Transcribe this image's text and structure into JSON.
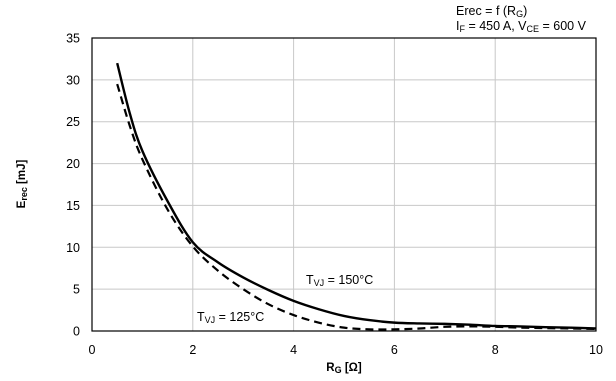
{
  "chart_data": {
    "type": "line",
    "title_lines": [
      "Erec = f (RG)",
      "IF = 450 A, VCE = 600 V"
    ],
    "title_rich": [
      [
        {
          "t": "Erec = f (R"
        },
        {
          "t": "G",
          "sub": true
        },
        {
          "t": ")"
        }
      ],
      [
        {
          "t": "I"
        },
        {
          "t": "F",
          "sub": true
        },
        {
          "t": " = 450 A, V"
        },
        {
          "t": "CE",
          "sub": true
        },
        {
          "t": " = 600 V"
        }
      ]
    ],
    "xlabel": "RG [Ω]",
    "xlabel_rich": [
      {
        "t": "R"
      },
      {
        "t": "G",
        "sub": true
      },
      {
        "t": " [Ω]"
      }
    ],
    "ylabel": "Erec [mJ]",
    "ylabel_rich": [
      {
        "t": "E"
      },
      {
        "t": "rec",
        "sub": true
      },
      {
        "t": "  [mJ]"
      }
    ],
    "xlim": [
      0,
      10
    ],
    "ylim": [
      0,
      35
    ],
    "xticks": [
      0,
      2,
      4,
      6,
      8,
      10
    ],
    "yticks": [
      0,
      5,
      10,
      15,
      20,
      25,
      30,
      35
    ],
    "grid": true,
    "series": [
      {
        "name": "TVJ = 150°C",
        "name_rich": [
          {
            "t": "T"
          },
          {
            "t": "VJ",
            "sub": true
          },
          {
            "t": " = 150°C"
          }
        ],
        "style": "solid",
        "color": "#000000",
        "x": [
          0.5,
          0.75,
          1.0,
          1.5,
          2.0,
          2.5,
          3.0,
          3.5,
          4.0,
          4.5,
          5.0,
          5.5,
          6.0,
          6.5,
          7.0,
          7.5,
          8.0,
          8.5,
          9.0,
          9.5,
          10.0
        ],
        "y": [
          32.0,
          26.0,
          21.5,
          15.5,
          10.6,
          8.2,
          6.4,
          4.9,
          3.6,
          2.6,
          1.8,
          1.3,
          1.0,
          0.9,
          0.85,
          0.75,
          0.6,
          0.55,
          0.45,
          0.4,
          0.3
        ]
      },
      {
        "name": "TVJ = 125°C",
        "name_rich": [
          {
            "t": "T"
          },
          {
            "t": "VJ",
            "sub": true
          },
          {
            "t": " = 125°C"
          }
        ],
        "style": "dashed",
        "color": "#000000",
        "x": [
          0.5,
          0.75,
          1.0,
          1.5,
          2.0,
          2.5,
          3.0,
          3.5,
          4.0,
          4.5,
          5.0,
          5.5,
          6.0,
          6.5,
          7.0,
          7.5,
          8.0,
          8.5,
          9.0,
          9.5,
          10.0
        ],
        "y": [
          29.5,
          24.5,
          20.5,
          14.5,
          10.1,
          7.2,
          5.0,
          3.2,
          1.9,
          1.0,
          0.4,
          0.2,
          0.2,
          0.3,
          0.5,
          0.55,
          0.5,
          0.4,
          0.35,
          0.3,
          0.25
        ]
      }
    ]
  }
}
